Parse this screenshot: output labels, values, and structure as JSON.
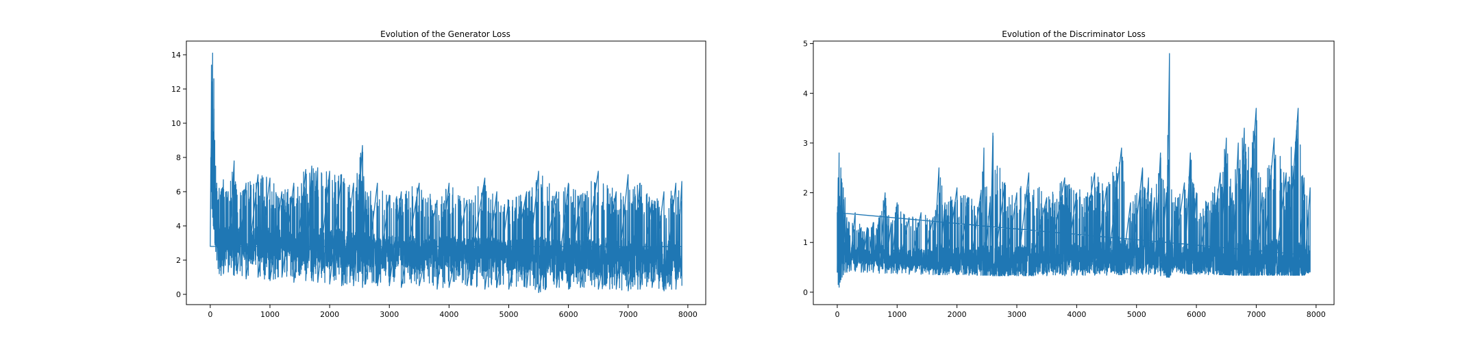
{
  "chart_data": [
    {
      "type": "line",
      "title": "Evolution of the Generator Loss",
      "xlabel": "",
      "ylabel": "",
      "xlim": [
        -400,
        8300
      ],
      "ylim": [
        -0.6,
        14.8
      ],
      "xticks": [
        0,
        1000,
        2000,
        3000,
        4000,
        5000,
        6000,
        7000,
        8000
      ],
      "xtick_labels": [
        "0",
        "1000",
        "2000",
        "3000",
        "4000",
        "5000",
        "6000",
        "7000",
        "8000"
      ],
      "yticks": [
        0,
        2,
        4,
        6,
        8,
        10,
        12,
        14
      ],
      "ytick_labels": [
        "0",
        "2",
        "4",
        "6",
        "8",
        "10",
        "12",
        "14"
      ],
      "grid": false,
      "legend": "none",
      "series": [
        {
          "color": "#1f77b4",
          "x": [
            0,
            10,
            20,
            30,
            40,
            50,
            60,
            75,
            90,
            110,
            130,
            150,
            180,
            220,
            300,
            400,
            450,
            600,
            800,
            1000,
            1200,
            1400,
            1600,
            1700,
            1800,
            2000,
            2200,
            2400,
            2550,
            2600,
            2800,
            3000,
            3200,
            3500,
            3800,
            4000,
            4300,
            4600,
            4800,
            5000,
            5300,
            5500,
            5800,
            6000,
            6200,
            6500,
            6800,
            7000,
            7200,
            7400,
            7600,
            7800,
            7900
          ],
          "y_high": [
            2.8,
            8,
            13.4,
            11,
            14.1,
            9.5,
            12.6,
            9,
            7.5,
            6.5,
            5.5,
            6.2,
            6,
            6.7,
            6,
            7.8,
            5.8,
            6.5,
            7,
            6.8,
            6,
            6.5,
            7.3,
            7.5,
            7.4,
            7.2,
            7,
            6.5,
            8.7,
            6,
            6.5,
            5.8,
            6,
            6.5,
            5.5,
            6.5,
            5.5,
            6.8,
            6,
            5.5,
            6,
            7.2,
            6,
            6.5,
            5.8,
            7.2,
            6,
            7,
            6.5,
            5.5,
            6,
            6.5,
            6.6
          ],
          "y_low": [
            2.8,
            5,
            6,
            5,
            4.5,
            4,
            3.8,
            3,
            2.5,
            2,
            1.5,
            1.2,
            1.1,
            1.2,
            1.3,
            1.1,
            1.2,
            0.9,
            1,
            0.8,
            1,
            0.7,
            0.8,
            0.8,
            0.7,
            0.6,
            0.5,
            0.5,
            0.4,
            0.6,
            0.5,
            0.5,
            0.4,
            0.5,
            0.3,
            0.4,
            0.5,
            0.3,
            0.4,
            0.3,
            0.4,
            0.1,
            0.4,
            0.3,
            0.4,
            0.3,
            0.3,
            0.2,
            0.3,
            0.4,
            0.2,
            0.3,
            0.5
          ],
          "y_center": [
            2.8,
            7.5,
            9,
            7,
            8,
            6.5,
            6,
            5,
            4.2,
            3.8,
            3.6,
            3.4,
            3.3,
            3.2,
            3.2,
            3.1,
            3.1,
            3,
            3,
            2.9,
            2.9,
            2.8,
            2.8,
            2.8,
            2.7,
            2.7,
            2.7,
            2.6,
            2.6,
            2.6,
            2.5,
            2.5,
            2.5,
            2.4,
            2.4,
            2.4,
            2.4,
            2.3,
            2.3,
            2.3,
            2.3,
            2.2,
            2.2,
            2.2,
            2.2,
            2.2,
            2.2,
            2.2,
            2.1,
            2.1,
            2.1,
            2.1,
            2.1
          ]
        }
      ]
    },
    {
      "type": "line",
      "title": "Evolution of the Discriminator Loss",
      "xlabel": "",
      "ylabel": "",
      "xlim": [
        -400,
        8300
      ],
      "ylim": [
        -0.25,
        5.05
      ],
      "xticks": [
        0,
        1000,
        2000,
        3000,
        4000,
        5000,
        6000,
        7000,
        8000
      ],
      "xtick_labels": [
        "0",
        "1000",
        "2000",
        "3000",
        "4000",
        "5000",
        "6000",
        "7000",
        "8000"
      ],
      "yticks": [
        0,
        1,
        2,
        3,
        4,
        5
      ],
      "ytick_labels": [
        "0",
        "1",
        "2",
        "3",
        "4",
        "5"
      ],
      "grid": false,
      "legend": "none",
      "series": [
        {
          "color": "#1f77b4",
          "x": [
            0,
            15,
            30,
            45,
            60,
            80,
            100,
            130,
            160,
            200,
            300,
            400,
            500,
            600,
            700,
            800,
            900,
            1000,
            1200,
            1400,
            1600,
            1700,
            1800,
            2000,
            2200,
            2400,
            2450,
            2550,
            2600,
            2800,
            3000,
            3200,
            3500,
            3800,
            4000,
            4300,
            4500,
            4750,
            4900,
            5100,
            5200,
            5300,
            5400,
            5500,
            5550,
            5600,
            5800,
            5900,
            6000,
            6200,
            6400,
            6500,
            6600,
            6700,
            6800,
            7000,
            7100,
            7300,
            7500,
            7700,
            7800,
            7900
          ],
          "y_high": [
            1.6,
            2.3,
            2.8,
            1.5,
            2.5,
            2.2,
            2.1,
            1.9,
            1.5,
            1.4,
            1.6,
            1.3,
            1.3,
            1.4,
            1.5,
            2,
            1.4,
            1.8,
            1.5,
            1.6,
            1.5,
            2.5,
            1.8,
            2.1,
            1.9,
            2,
            2.9,
            1.8,
            3.2,
            2.2,
            2,
            2.4,
            1.9,
            2.3,
            2,
            2.4,
            2.1,
            2.9,
            1.8,
            2.5,
            2.3,
            1.9,
            2.8,
            2,
            4.8,
            1.8,
            2.2,
            2.8,
            2,
            1.8,
            2.4,
            3.1,
            2,
            3,
            3.3,
            3.7,
            2,
            3.1,
            2.4,
            3.7,
            2.3,
            2.1
          ],
          "y_low": [
            0.4,
            0.15,
            0.1,
            0.2,
            0.25,
            0.3,
            0.35,
            0.4,
            0.4,
            0.42,
            0.42,
            0.4,
            0.4,
            0.4,
            0.38,
            0.38,
            0.38,
            0.37,
            0.36,
            0.36,
            0.35,
            0.35,
            0.35,
            0.35,
            0.34,
            0.34,
            0.34,
            0.34,
            0.33,
            0.33,
            0.33,
            0.33,
            0.33,
            0.33,
            0.34,
            0.34,
            0.34,
            0.35,
            0.35,
            0.36,
            0.36,
            0.36,
            0.33,
            0.3,
            0.3,
            0.4,
            0.37,
            0.36,
            0.36,
            0.35,
            0.35,
            0.35,
            0.34,
            0.34,
            0.34,
            0.34,
            0.34,
            0.34,
            0.34,
            0.34,
            0.34,
            0.4
          ],
          "y_center": [
            0.9,
            1,
            0.8,
            0.6,
            0.8,
            0.9,
            0.9,
            0.85,
            0.8,
            0.78,
            0.76,
            0.74,
            0.72,
            0.7,
            0.7,
            0.7,
            0.68,
            0.68,
            0.67,
            0.66,
            0.65,
            0.65,
            0.64,
            0.63,
            0.63,
            0.62,
            0.62,
            0.62,
            0.62,
            0.62,
            0.63,
            0.65,
            0.66,
            0.68,
            0.7,
            0.72,
            0.73,
            0.75,
            0.76,
            0.77,
            0.78,
            0.78,
            0.75,
            0.6,
            0.6,
            0.7,
            0.68,
            0.66,
            0.65,
            0.64,
            0.63,
            0.63,
            0.62,
            0.62,
            0.62,
            0.62,
            0.62,
            0.62,
            0.62,
            0.62,
            0.62,
            0.65
          ]
        }
      ]
    }
  ]
}
